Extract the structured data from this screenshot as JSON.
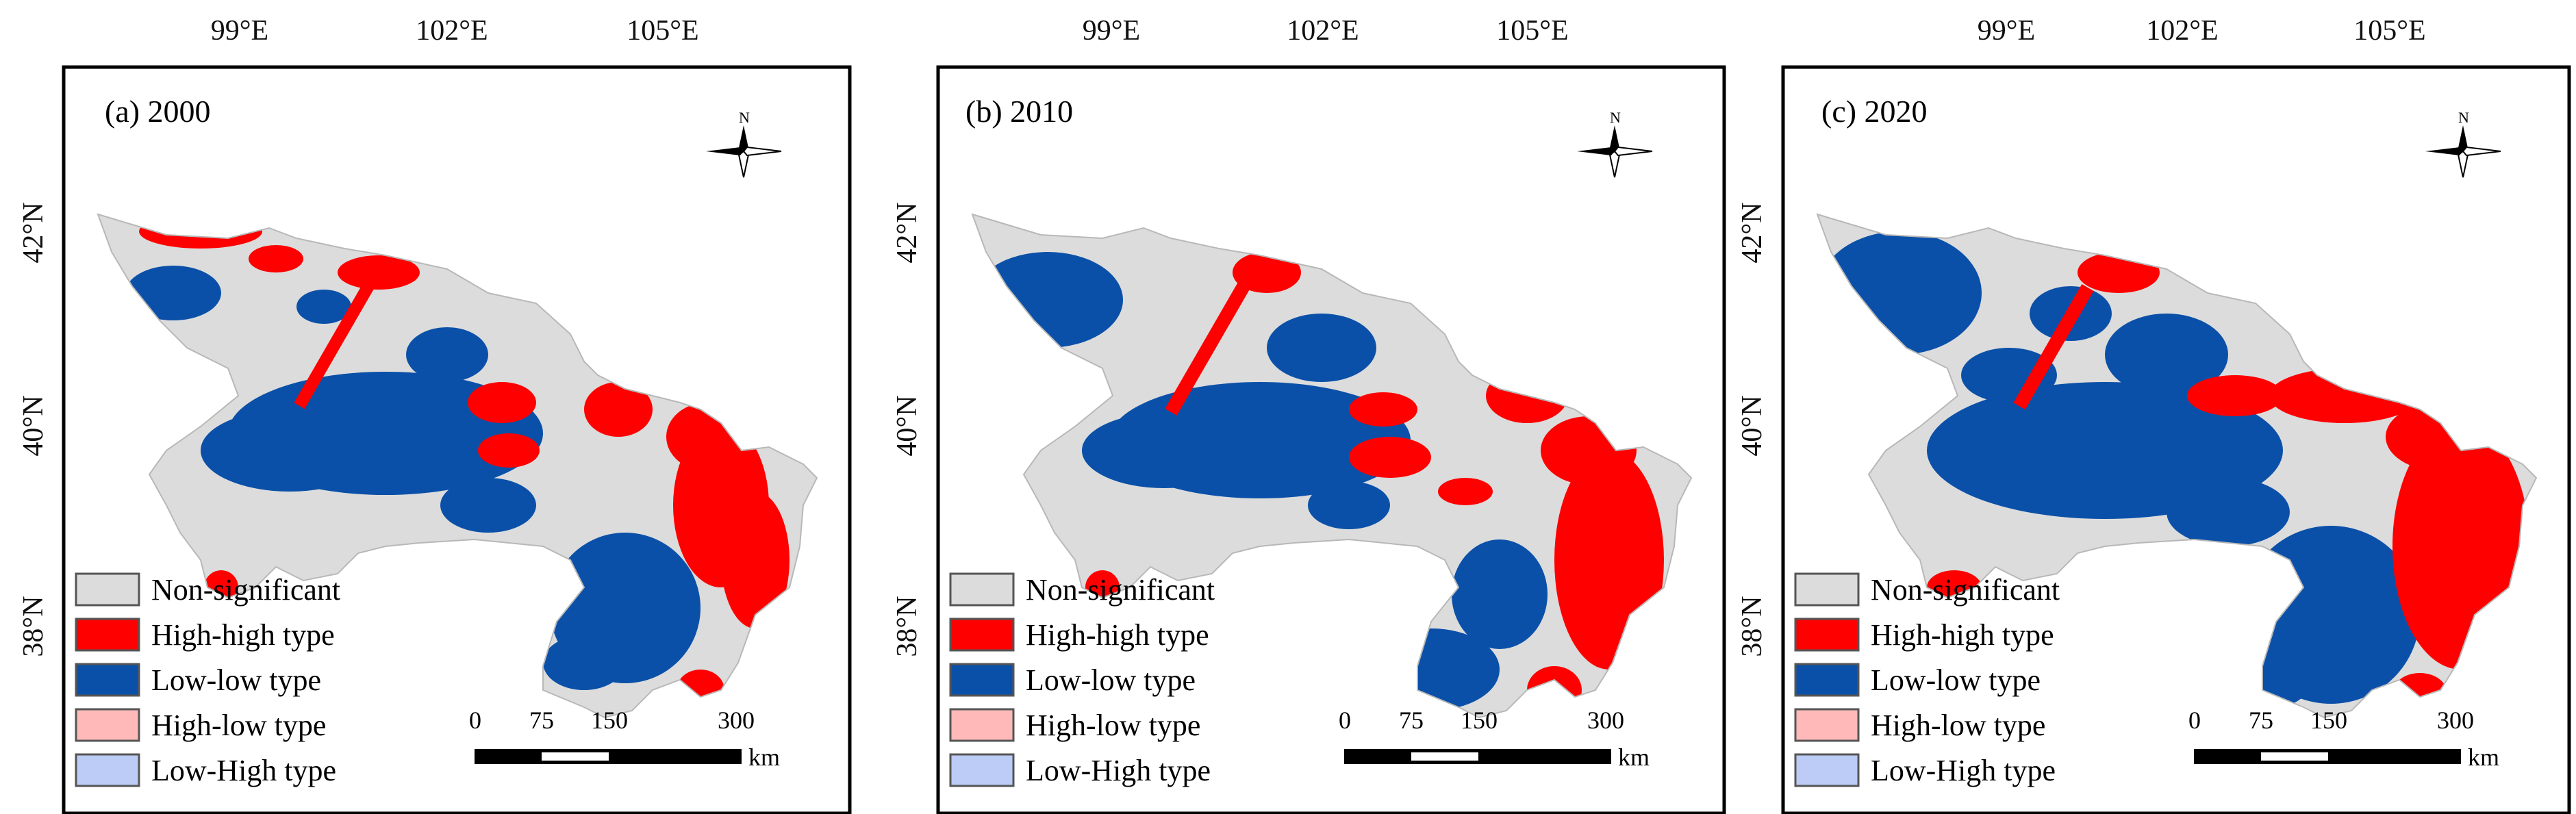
{
  "figure": {
    "lon_ticks": [
      "99°E",
      "102°E",
      "105°E"
    ],
    "lat_ticks": [
      "42°N",
      "40°N",
      "38°N"
    ],
    "north_label": "N",
    "scale_bar": {
      "labels": [
        "0",
        "75",
        "150",
        "300"
      ],
      "unit": "km"
    },
    "legend": [
      {
        "label": "Non-significant",
        "color": "#dcdcdc"
      },
      {
        "label": "High-high type",
        "color": "#ff0000"
      },
      {
        "label": "Low-low type",
        "color": "#0a50a8"
      },
      {
        "label": "High-low type",
        "color": "#ffb9b9"
      },
      {
        "label": "Low-High type",
        "color": "#bcccf6"
      }
    ]
  },
  "panels": [
    {
      "label": "(a) 2000"
    },
    {
      "label": "(b) 2010"
    },
    {
      "label": "(c) 2020"
    }
  ]
}
